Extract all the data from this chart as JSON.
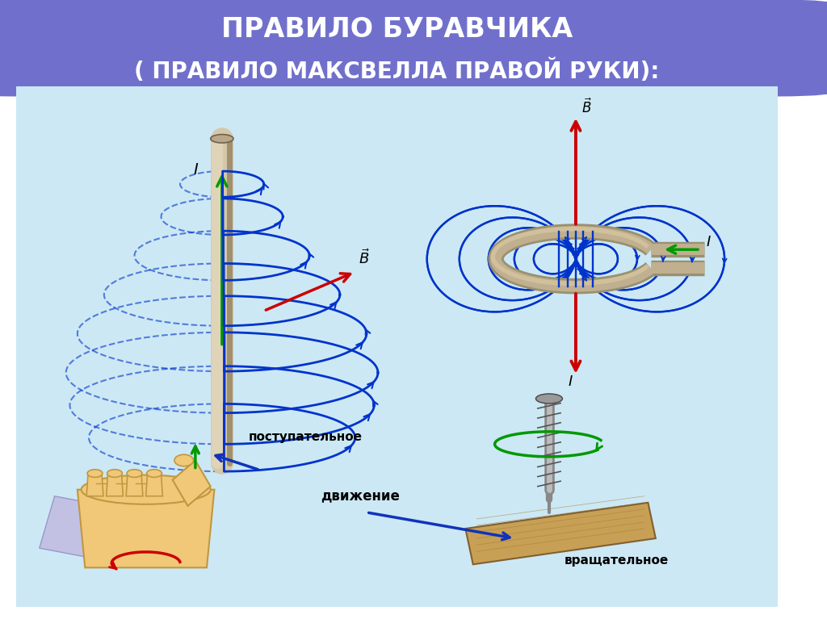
{
  "title_line1": "ПРАВИЛО БУРАВЧИКА",
  "title_line2": "( ПРАВИЛО МАКСВЕЛЛА ПРАВОЙ РУКИ):",
  "title_bg_color": "#7070cc",
  "title_text_color": "#ffffff",
  "main_bg_color": "#cce8f4",
  "outer_bg_color": "#ffffff",
  "border_color": "#2244aa",
  "blue_color": "#0033cc",
  "red_color": "#cc0000",
  "green_color": "#009900",
  "wire_color": "#c8b898",
  "wire_dark": "#907850",
  "loop_color": "#a09070",
  "label_I": "I",
  "label_B": "⃗B",
  "text_postupatelnoye": "поступательное",
  "text_dvizheniye": "движение",
  "text_vraschatelnoe": "вращательное"
}
